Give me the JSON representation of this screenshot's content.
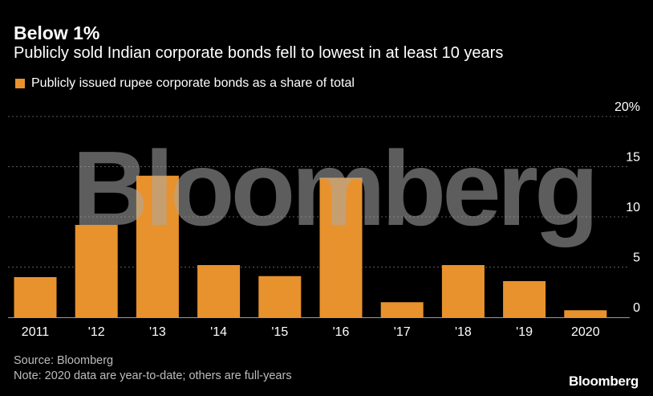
{
  "title": "Below 1%",
  "subtitle": "Publicly sold Indian corporate bonds fell to lowest in at least 10 years",
  "source": "Source: Bloomberg",
  "note": "Note: 2020 data are year-to-date; others are full-years",
  "brand": "Bloomberg",
  "watermark": "Bloomberg",
  "colors": {
    "background": "#000000",
    "bar": "#e8922e",
    "grid": "#5a5a5a",
    "text": "#ffffff",
    "muted": "#bdbdbd"
  },
  "chart_data": {
    "type": "bar",
    "categories": [
      "2011",
      "'12",
      "'13",
      "'14",
      "'15",
      "'16",
      "'17",
      "'18",
      "'19",
      "2020"
    ],
    "series": [
      {
        "name": "Publicly issued rupee corporate bonds as a share of total",
        "values": [
          4.0,
          9.2,
          14.1,
          5.2,
          4.1,
          13.9,
          1.5,
          5.2,
          3.6,
          0.7
        ]
      }
    ],
    "yticks": [
      "0",
      "5",
      "10",
      "15",
      "20%"
    ],
    "ylim": [
      0,
      20
    ],
    "grid": true,
    "legend_position": "top-left",
    "y_axis_position": "right"
  }
}
